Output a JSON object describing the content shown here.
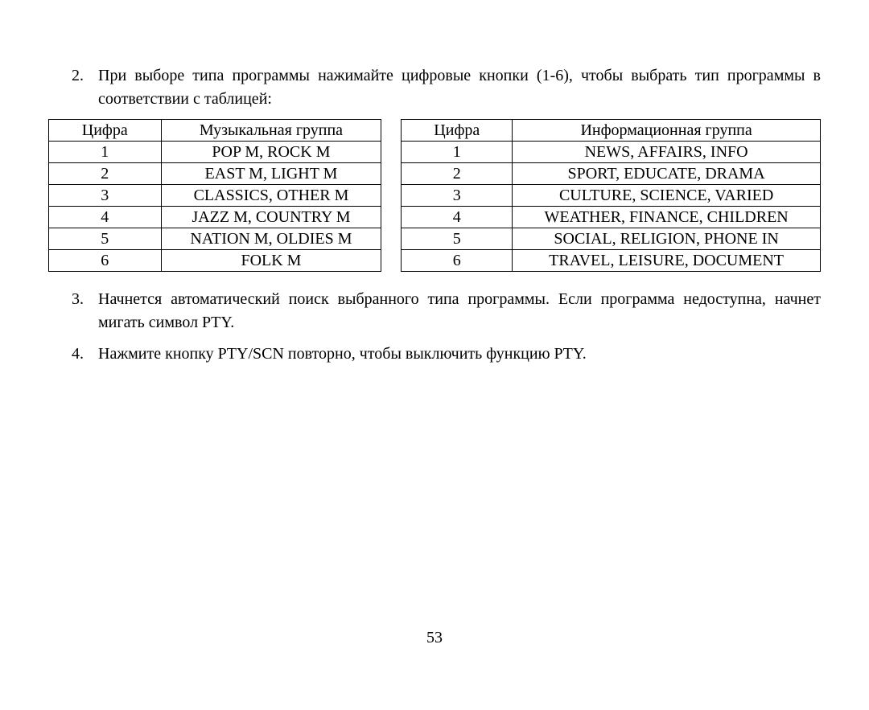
{
  "items": [
    {
      "num": "2.",
      "text": "При выборе типа программы нажимайте цифровые кнопки (1-6), чтобы выбрать тип программы в соответствии с таблицей:"
    }
  ],
  "table1": {
    "header": [
      "Цифра",
      "Музыкальная группа"
    ],
    "rows": [
      [
        "1",
        "POP M, ROCK M"
      ],
      [
        "2",
        "EAST M, LIGHT M"
      ],
      [
        "3",
        "CLASSICS, OTHER M"
      ],
      [
        "4",
        "JAZZ M, COUNTRY M"
      ],
      [
        "5",
        "NATION M, OLDIES M"
      ],
      [
        "6",
        "FOLK M"
      ]
    ]
  },
  "table2": {
    "header": [
      "Цифра",
      "Информационная группа"
    ],
    "rows": [
      [
        "1",
        "NEWS, AFFAIRS, INFO"
      ],
      [
        "2",
        "SPORT, EDUCATE, DRAMA"
      ],
      [
        "3",
        "CULTURE, SCIENCE, VARIED"
      ],
      [
        "4",
        "WEATHER, FINANCE, CHILDREN"
      ],
      [
        "5",
        "SOCIAL, RELIGION, PHONE IN"
      ],
      [
        "6",
        "TRAVEL, LEISURE, DOCUMENT"
      ]
    ]
  },
  "items_after": [
    {
      "num": "3.",
      "text": "Начнется автоматический поиск выбранного типа программы. Если программа недоступна, начнет мигать символ PTY."
    },
    {
      "num": "4.",
      "text": "Нажмите кнопку PTY/SCN повторно, чтобы выключить функцию PTY."
    }
  ],
  "page_number": "53"
}
